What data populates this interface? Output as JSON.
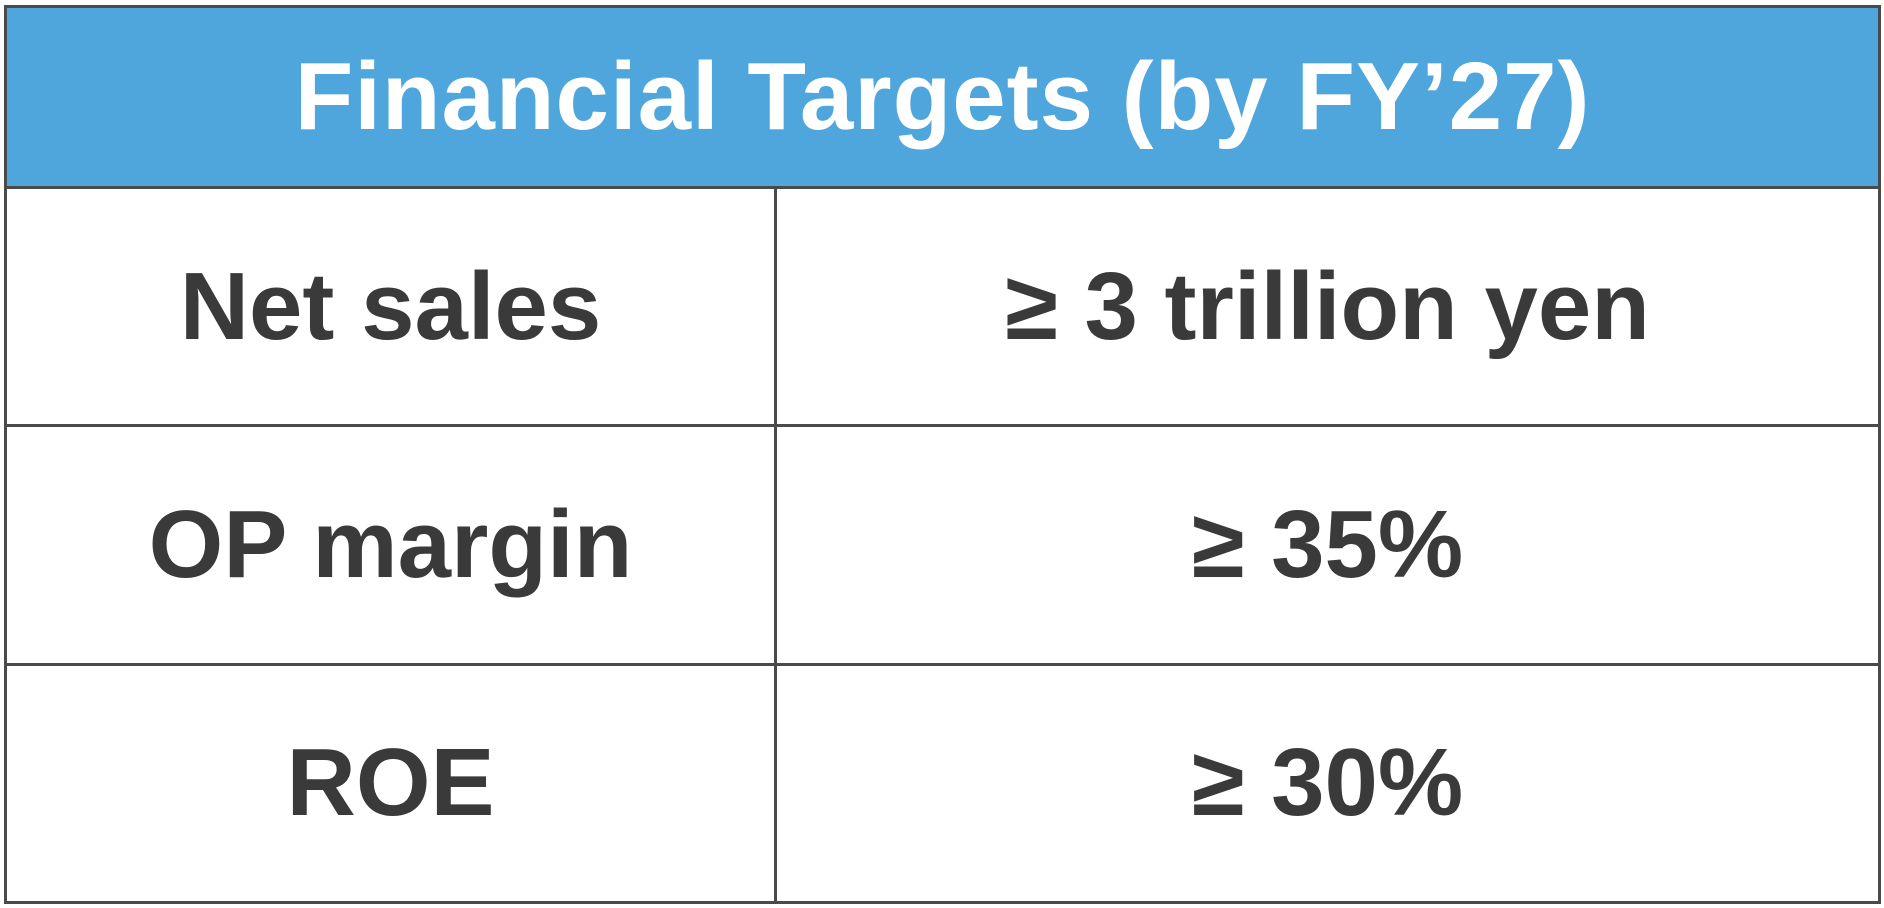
{
  "table": {
    "title": "Financial Targets (by FY’27)",
    "colors": {
      "header_background": "#4ea6dc",
      "header_text": "#ffffff",
      "body_text": "#3a3a3a",
      "border": "#4a4a4a"
    },
    "rows": [
      {
        "label": "Net sales",
        "value": "≥ 3 trillion yen"
      },
      {
        "label": "OP margin",
        "value": "≥ 35%"
      },
      {
        "label": "ROE",
        "value": "≥ 30%"
      }
    ]
  }
}
